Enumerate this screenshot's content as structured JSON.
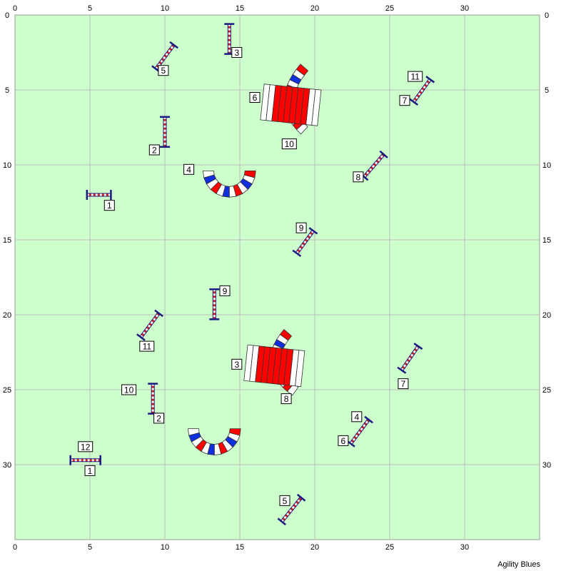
{
  "footer": "Agility Blues",
  "grid": {
    "x_range": [
      0,
      35
    ],
    "y_range": [
      0,
      35
    ],
    "major_step": 5,
    "x_tick_labels": [
      "0",
      "5",
      "10",
      "15",
      "20",
      "25",
      "30"
    ],
    "y_tick_labels": [
      "0",
      "5",
      "10",
      "15",
      "20",
      "25",
      "30"
    ],
    "field_color": "#ccffcc",
    "grid_color": "#bbbbbb"
  },
  "colors": {
    "jump_pole": "#cc2222",
    "jump_stripe": "#ffffff",
    "wing": "#1a1a80",
    "tunnel_red": "#ff0000",
    "tunnel_white": "#ffffff",
    "tunnel_blue": "#1030e0"
  },
  "jumps": [
    {
      "x1": 4.8,
      "y1": 12.0,
      "x2": 6.4,
      "y2": 12.0
    },
    {
      "x1": 10.0,
      "y1": 6.8,
      "x2": 10.0,
      "y2": 8.8
    },
    {
      "x1": 14.3,
      "y1": 0.6,
      "x2": 14.3,
      "y2": 2.6
    },
    {
      "x1": 9.4,
      "y1": 3.6,
      "x2": 10.6,
      "y2": 2.0
    },
    {
      "x1": 26.6,
      "y1": 5.8,
      "x2": 27.7,
      "y2": 4.3
    },
    {
      "x1": 23.3,
      "y1": 10.8,
      "x2": 24.6,
      "y2": 9.3
    },
    {
      "x1": 18.8,
      "y1": 15.9,
      "x2": 19.9,
      "y2": 14.4
    },
    {
      "x1": 13.3,
      "y1": 18.3,
      "x2": 13.3,
      "y2": 20.3
    },
    {
      "x1": 8.4,
      "y1": 21.5,
      "x2": 9.6,
      "y2": 19.9
    },
    {
      "x1": 9.2,
      "y1": 24.6,
      "x2": 9.2,
      "y2": 26.6
    },
    {
      "x1": 25.8,
      "y1": 23.7,
      "x2": 26.9,
      "y2": 22.1
    },
    {
      "x1": 22.4,
      "y1": 28.6,
      "x2": 23.6,
      "y2": 27.0
    },
    {
      "x1": 3.7,
      "y1": 29.7,
      "x2": 5.7,
      "y2": 29.7
    },
    {
      "x1": 17.8,
      "y1": 33.8,
      "x2": 19.1,
      "y2": 32.2
    }
  ],
  "tunnels_u": [
    {
      "cx": 14.3,
      "cy": 10.4,
      "r": 1.4
    },
    {
      "cx": 13.3,
      "cy": 27.6,
      "r": 1.4
    }
  ],
  "tunnels_straight": [
    {
      "x1": 16.5,
      "y1": 5.8,
      "x2": 20.3,
      "y2": 6.2,
      "width": 1.0
    },
    {
      "x1": 15.4,
      "y1": 23.2,
      "x2": 19.2,
      "y2": 23.6,
      "width": 1.0
    }
  ],
  "tunnels_curved": [
    {
      "x1": 19.3,
      "y1": 3.5,
      "cx": 17.3,
      "cy": 5.8,
      "x2": 19.3,
      "y2": 7.7
    },
    {
      "x1": 18.2,
      "y1": 21.2,
      "cx": 16.3,
      "cy": 23.4,
      "x2": 18.7,
      "y2": 25.1
    }
  ],
  "labels": [
    {
      "text": "1",
      "x": 6.3,
      "y": 12.7
    },
    {
      "text": "2",
      "x": 9.3,
      "y": 9.0
    },
    {
      "text": "3",
      "x": 14.8,
      "y": 2.5
    },
    {
      "text": "4",
      "x": 11.6,
      "y": 10.3
    },
    {
      "text": "5",
      "x": 9.9,
      "y": 3.7
    },
    {
      "text": "6",
      "x": 16.0,
      "y": 5.5
    },
    {
      "text": "7",
      "x": 26.0,
      "y": 5.7
    },
    {
      "text": "8",
      "x": 22.9,
      "y": 10.8
    },
    {
      "text": "9",
      "x": 19.1,
      "y": 14.2
    },
    {
      "text": "10",
      "x": 18.3,
      "y": 8.6
    },
    {
      "text": "11",
      "x": 26.7,
      "y": 4.1
    },
    {
      "text": "1",
      "x": 5.0,
      "y": 30.4
    },
    {
      "text": "2",
      "x": 9.6,
      "y": 26.9
    },
    {
      "text": "3",
      "x": 14.8,
      "y": 23.3
    },
    {
      "text": "4",
      "x": 22.8,
      "y": 26.8
    },
    {
      "text": "5",
      "x": 18.0,
      "y": 32.4
    },
    {
      "text": "6",
      "x": 21.9,
      "y": 28.4
    },
    {
      "text": "7",
      "x": 25.9,
      "y": 24.6
    },
    {
      "text": "8",
      "x": 18.1,
      "y": 25.6
    },
    {
      "text": "9",
      "x": 14.0,
      "y": 18.4
    },
    {
      "text": "10",
      "x": 7.6,
      "y": 25.0
    },
    {
      "text": "11",
      "x": 8.8,
      "y": 22.1
    },
    {
      "text": "12",
      "x": 4.7,
      "y": 28.8
    }
  ]
}
